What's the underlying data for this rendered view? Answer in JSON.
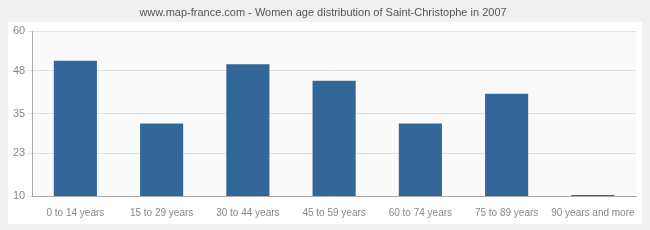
{
  "chart_data": {
    "type": "bar",
    "title": "www.map-france.com - Women age distribution of Saint-Christophe in 2007",
    "categories": [
      "0 to 14 years",
      "15 to 29 years",
      "30 to 44 years",
      "45 to 59 years",
      "60 to 74 years",
      "75 to 89 years",
      "90 years and more"
    ],
    "values": [
      51,
      32,
      50,
      45,
      32,
      41,
      10.3
    ],
    "color": "#336699",
    "ylim": [
      10,
      60
    ],
    "yticks": [
      10,
      23,
      35,
      48,
      60
    ],
    "grid": true
  }
}
